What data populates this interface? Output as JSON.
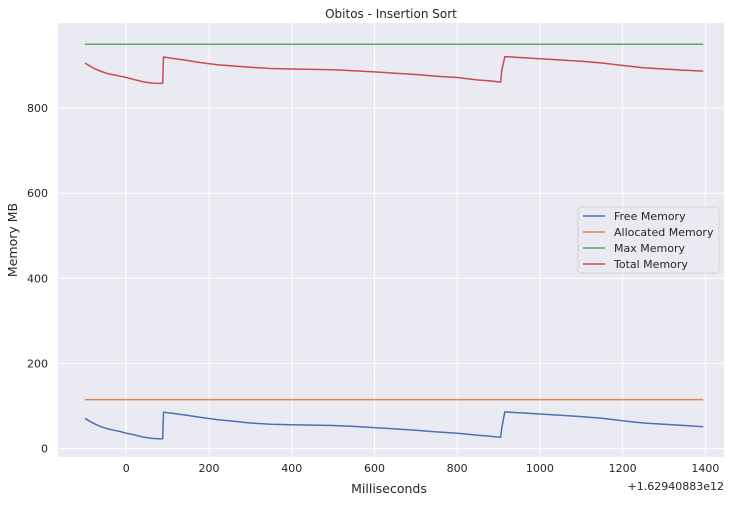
{
  "chart_data": {
    "type": "line",
    "title": "Obitos - Insertion Sort",
    "xlabel": "Milliseconds",
    "ylabel": "Memory MB",
    "x_offset_label": "+1.62940883e12",
    "xlim": [
      -165,
      1445
    ],
    "ylim": [
      -20,
      1000
    ],
    "xticks": [
      0,
      200,
      400,
      600,
      800,
      1000,
      1200,
      1400
    ],
    "yticks": [
      0,
      200,
      400,
      600,
      800
    ],
    "grid": true,
    "legend_position": "center-right",
    "colors": {
      "background": "#eaeaf2",
      "grid": "#ffffff",
      "free": "#4c72b0",
      "allocated": "#dd8452",
      "max": "#55a868",
      "total": "#c44e52"
    },
    "series": [
      {
        "name": "Free Memory",
        "color": "#4c72b0",
        "x": [
          -100,
          -90,
          -75,
          -60,
          -45,
          -30,
          -15,
          0,
          20,
          40,
          60,
          75,
          88,
          90,
          110,
          140,
          180,
          220,
          260,
          300,
          350,
          400,
          450,
          500,
          550,
          600,
          650,
          700,
          750,
          800,
          850,
          880,
          905,
          908,
          915,
          950,
          1000,
          1050,
          1100,
          1150,
          1200,
          1250,
          1300,
          1350,
          1395
        ],
        "values": [
          71,
          65,
          57,
          51,
          46,
          43,
          40,
          36,
          32,
          27,
          24,
          23,
          23,
          85,
          83,
          79,
          73,
          68,
          64,
          60,
          57,
          56,
          55,
          54,
          52,
          49,
          46,
          43,
          39,
          36,
          31,
          29,
          26,
          50,
          86,
          84,
          81,
          78,
          75,
          71,
          65,
          60,
          57,
          54,
          51
        ]
      },
      {
        "name": "Allocated Memory",
        "color": "#dd8452",
        "x": [
          -100,
          1395
        ],
        "values": [
          115,
          115
        ]
      },
      {
        "name": "Max Memory",
        "color": "#55a868",
        "x": [
          -100,
          1395
        ],
        "values": [
          950,
          950
        ]
      },
      {
        "name": "Total Memory",
        "color": "#c44e52",
        "x": [
          -100,
          -90,
          -75,
          -60,
          -45,
          -30,
          -15,
          0,
          20,
          40,
          60,
          75,
          88,
          90,
          110,
          140,
          180,
          220,
          260,
          300,
          350,
          400,
          450,
          500,
          550,
          600,
          650,
          700,
          750,
          800,
          850,
          880,
          905,
          908,
          915,
          950,
          1000,
          1050,
          1100,
          1150,
          1200,
          1250,
          1300,
          1350,
          1395
        ],
        "values": [
          906,
          900,
          892,
          886,
          881,
          878,
          875,
          872,
          867,
          862,
          859,
          858,
          858,
          920,
          917,
          913,
          907,
          902,
          899,
          896,
          893,
          892,
          891,
          890,
          888,
          885,
          882,
          879,
          875,
          872,
          866,
          864,
          861,
          890,
          921,
          919,
          916,
          913,
          910,
          906,
          900,
          895,
          892,
          889,
          887
        ]
      }
    ]
  }
}
